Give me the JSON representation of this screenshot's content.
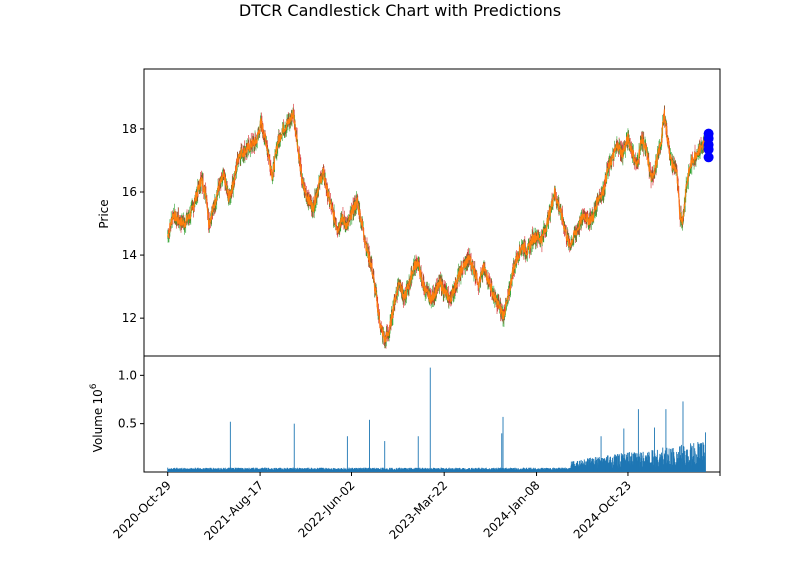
{
  "chart_data": {
    "type": "candlestick",
    "title": "DTCR Candlestick Chart with Predictions",
    "price_panel": {
      "ylabel": "Price",
      "ylim": [
        10.8,
        19.9
      ],
      "yticks": [
        12,
        14,
        16,
        18
      ],
      "grid": false
    },
    "volume_panel": {
      "ylabel": "Volume",
      "ylabel_exponent": "10^6",
      "ylim": [
        0,
        1.2
      ],
      "yticks": [
        0.5,
        1.0
      ],
      "ytick_labels": [
        "0.5",
        "1.0"
      ],
      "grid": false
    },
    "x_axis": {
      "type": "date",
      "range": [
        "2020-08-15",
        "2025-08-10"
      ],
      "ticks": [
        "2020-10-29",
        "2021-08-17",
        "2022-06-02",
        "2023-03-22",
        "2024-01-08",
        "2024-10-23",
        "2025-08-10"
      ],
      "tick_labels": [
        "2020-Oct-29",
        "2021-Aug-17",
        "2022-Jun-02",
        "2023-Mar-22",
        "2024-Jan-08",
        "2024-Oct-23",
        ""
      ]
    },
    "colors": {
      "up": "#2ca02c",
      "down": "#d62728",
      "close_line": "#ff7f0e",
      "volume": "#1f77b4",
      "prediction": "#0000ff"
    },
    "price_series": [
      [
        "2020-10-29",
        14.6
      ],
      [
        "2020-11-15",
        15.3
      ],
      [
        "2020-12-01",
        15.1
      ],
      [
        "2020-12-20",
        15.0
      ],
      [
        "2021-01-10",
        15.3
      ],
      [
        "2021-01-25",
        15.8
      ],
      [
        "2021-02-12",
        16.4
      ],
      [
        "2021-02-28",
        15.9
      ],
      [
        "2021-03-08",
        15.0
      ],
      [
        "2021-03-25",
        15.6
      ],
      [
        "2021-04-10",
        16.2
      ],
      [
        "2021-04-25",
        16.5
      ],
      [
        "2021-05-10",
        15.8
      ],
      [
        "2021-05-28",
        16.4
      ],
      [
        "2021-06-10",
        17.2
      ],
      [
        "2021-07-01",
        17.3
      ],
      [
        "2021-07-20",
        17.5
      ],
      [
        "2021-08-05",
        17.6
      ],
      [
        "2021-08-20",
        18.2
      ],
      [
        "2021-09-05",
        17.6
      ],
      [
        "2021-09-25",
        16.5
      ],
      [
        "2021-10-10",
        17.5
      ],
      [
        "2021-10-28",
        18.0
      ],
      [
        "2021-11-15",
        18.2
      ],
      [
        "2021-11-30",
        18.5
      ],
      [
        "2021-12-10",
        17.8
      ],
      [
        "2021-12-28",
        16.3
      ],
      [
        "2022-01-15",
        15.8
      ],
      [
        "2022-02-01",
        15.5
      ],
      [
        "2022-02-20",
        16.3
      ],
      [
        "2022-03-05",
        16.6
      ],
      [
        "2022-03-20",
        15.9
      ],
      [
        "2022-04-05",
        15.3
      ],
      [
        "2022-04-20",
        14.8
      ],
      [
        "2022-05-01",
        15.2
      ],
      [
        "2022-05-20",
        14.9
      ],
      [
        "2022-06-05",
        15.4
      ],
      [
        "2022-06-20",
        15.7
      ],
      [
        "2022-07-05",
        15.0
      ],
      [
        "2022-07-20",
        14.2
      ],
      [
        "2022-08-05",
        13.6
      ],
      [
        "2022-08-20",
        12.6
      ],
      [
        "2022-09-01",
        11.8
      ],
      [
        "2022-09-15",
        11.3
      ],
      [
        "2022-09-30",
        11.6
      ],
      [
        "2022-10-15",
        12.5
      ],
      [
        "2022-11-01",
        13.2
      ],
      [
        "2022-11-15",
        12.6
      ],
      [
        "2022-12-01",
        13.1
      ],
      [
        "2022-12-15",
        13.6
      ],
      [
        "2022-12-28",
        13.8
      ],
      [
        "2023-01-10",
        13.2
      ],
      [
        "2023-01-25",
        12.8
      ],
      [
        "2023-02-10",
        12.6
      ],
      [
        "2023-02-25",
        12.9
      ],
      [
        "2023-03-10",
        13.1
      ],
      [
        "2023-03-25",
        12.8
      ],
      [
        "2023-04-10",
        12.6
      ],
      [
        "2023-04-25",
        13.0
      ],
      [
        "2023-05-10",
        13.4
      ],
      [
        "2023-05-25",
        13.7
      ],
      [
        "2023-06-10",
        13.9
      ],
      [
        "2023-06-25",
        13.5
      ],
      [
        "2023-07-10",
        13.1
      ],
      [
        "2023-07-25",
        13.6
      ],
      [
        "2023-08-10",
        13.2
      ],
      [
        "2023-08-25",
        12.7
      ],
      [
        "2023-09-10",
        12.4
      ],
      [
        "2023-09-25",
        12.1
      ],
      [
        "2023-10-10",
        12.6
      ],
      [
        "2023-10-25",
        13.5
      ],
      [
        "2023-11-10",
        14.0
      ],
      [
        "2023-11-25",
        14.3
      ],
      [
        "2023-12-10",
        14.1
      ],
      [
        "2023-12-25",
        14.5
      ],
      [
        "2024-01-08",
        14.6
      ],
      [
        "2024-01-25",
        14.5
      ],
      [
        "2024-02-10",
        15.0
      ],
      [
        "2024-02-25",
        15.6
      ],
      [
        "2024-03-05",
        16.0
      ],
      [
        "2024-03-20",
        15.5
      ],
      [
        "2024-04-05",
        14.9
      ],
      [
        "2024-04-20",
        14.3
      ],
      [
        "2024-05-05",
        14.6
      ],
      [
        "2024-05-20",
        14.9
      ],
      [
        "2024-06-05",
        15.3
      ],
      [
        "2024-06-20",
        15.1
      ],
      [
        "2024-07-05",
        15.2
      ],
      [
        "2024-07-20",
        15.8
      ],
      [
        "2024-08-05",
        16.0
      ],
      [
        "2024-08-20",
        16.7
      ],
      [
        "2024-09-05",
        17.1
      ],
      [
        "2024-09-20",
        17.5
      ],
      [
        "2024-10-05",
        17.2
      ],
      [
        "2024-10-23",
        17.7
      ],
      [
        "2024-11-05",
        17.3
      ],
      [
        "2024-11-20",
        16.8
      ],
      [
        "2024-12-05",
        17.7
      ],
      [
        "2024-12-20",
        17.3
      ],
      [
        "2025-01-05",
        16.4
      ],
      [
        "2025-01-20",
        16.9
      ],
      [
        "2025-02-05",
        17.6
      ],
      [
        "2025-02-15",
        18.5
      ],
      [
        "2025-02-25",
        17.7
      ],
      [
        "2025-03-10",
        16.9
      ],
      [
        "2025-03-25",
        16.7
      ],
      [
        "2025-04-05",
        15.3
      ],
      [
        "2025-04-15",
        15.1
      ],
      [
        "2025-04-25",
        16.2
      ],
      [
        "2025-05-10",
        16.9
      ],
      [
        "2025-05-25",
        17.2
      ],
      [
        "2025-06-10",
        17.4
      ],
      [
        "2025-06-25",
        17.6
      ]
    ],
    "predictions": [
      [
        "2025-07-05",
        17.85
      ],
      [
        "2025-07-05",
        17.7
      ],
      [
        "2025-07-05",
        17.5
      ],
      [
        "2025-07-05",
        17.35
      ],
      [
        "2025-07-05",
        17.1
      ]
    ],
    "volume_spikes_millions": [
      [
        "2021-05-15",
        0.52
      ],
      [
        "2021-12-03",
        0.5
      ],
      [
        "2022-05-20",
        0.37
      ],
      [
        "2022-07-29",
        0.54
      ],
      [
        "2022-09-15",
        0.32
      ],
      [
        "2022-12-30",
        0.37
      ],
      [
        "2023-02-06",
        1.08
      ],
      [
        "2023-09-20",
        0.4
      ],
      [
        "2023-09-24",
        0.57
      ],
      [
        "2024-07-30",
        0.37
      ],
      [
        "2024-10-10",
        0.45
      ],
      [
        "2024-11-25",
        0.65
      ],
      [
        "2025-01-15",
        0.46
      ],
      [
        "2025-02-20",
        0.65
      ],
      [
        "2025-04-15",
        0.73
      ],
      [
        "2025-06-01",
        0.31
      ],
      [
        "2025-06-25",
        0.41
      ]
    ]
  }
}
